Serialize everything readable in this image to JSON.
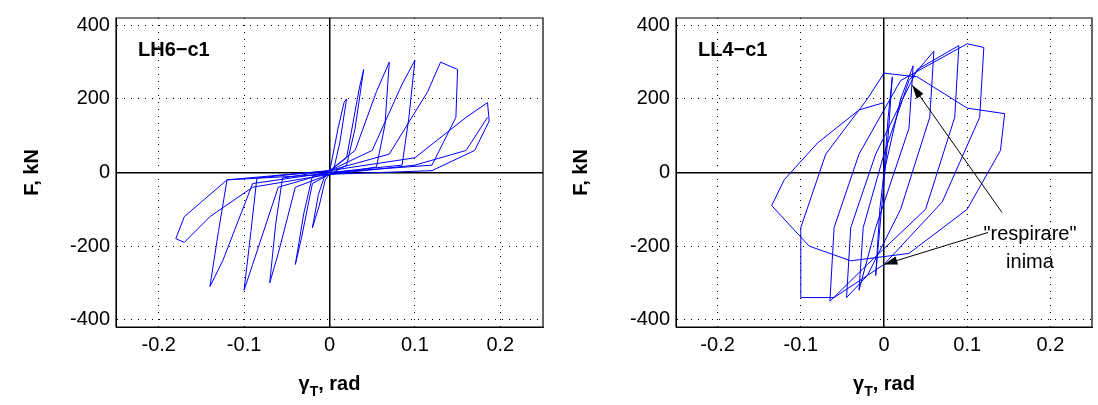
{
  "chart_data": [
    {
      "type": "line",
      "title": "LH6−c1",
      "xlabel": "γ$_{T}$, rad",
      "ylabel": "F, kN",
      "xlim": [
        -0.25,
        0.25
      ],
      "ylim": [
        -420,
        420
      ],
      "xticks": [
        -0.2,
        -0.1,
        0,
        0.1,
        0.2
      ],
      "yticks": [
        -400,
        -200,
        0,
        200,
        400
      ],
      "grid": true,
      "legend": false,
      "marker": "none",
      "line_style": "solid",
      "series": [
        {
          "color": "#0000ff",
          "x": [
            0,
            0.01,
            0.017,
            0.02,
            0.012,
            0.005,
            -0.005,
            -0.012,
            -0.02,
            -0.013,
            -0.005,
            0.02,
            0.035,
            0.04,
            0.03,
            0.02,
            0,
            -0.02,
            -0.033,
            -0.04,
            -0.03,
            -0.02,
            0,
            0.03,
            0.055,
            0.07,
            0.065,
            0.055,
            0,
            -0.04,
            -0.06,
            -0.07,
            -0.063,
            -0.055,
            0,
            0.05,
            0.085,
            0.1,
            0.093,
            0.085,
            0,
            -0.06,
            -0.09,
            -0.1,
            -0.092,
            -0.085,
            0,
            0.07,
            0.115,
            0.13,
            0.15,
            0.148,
            0.12,
            0,
            -0.09,
            -0.125,
            -0.14,
            -0.13,
            -0.12,
            0,
            0.1,
            0.16,
            0.185,
            0.187,
            0.17,
            0.12,
            0,
            -0.12,
            -0.17,
            -0.18,
            -0.17,
            -0.14,
            -0.09,
            0,
            0.1,
            0.16,
            0.185
          ],
          "values": [
            0,
            120,
            190,
            200,
            80,
            10,
            -20,
            -90,
            -150,
            -60,
            -5,
            40,
            230,
            280,
            120,
            20,
            -5,
            -30,
            -180,
            -250,
            -110,
            -10,
            5,
            60,
            220,
            300,
            130,
            15,
            -5,
            -40,
            -220,
            -300,
            -140,
            -15,
            5,
            60,
            240,
            305,
            150,
            20,
            0,
            -40,
            -250,
            -320,
            -160,
            -15,
            5,
            50,
            220,
            300,
            280,
            150,
            20,
            0,
            -30,
            -240,
            -310,
            -160,
            -20,
            5,
            40,
            150,
            190,
            140,
            60,
            5,
            -5,
            -20,
            -120,
            -180,
            -190,
            -120,
            -40,
            -5,
            20,
            60,
            150
          ]
        }
      ]
    },
    {
      "type": "line",
      "title": "LL4−c1",
      "xlabel": "γ$_{T}$, rad",
      "ylabel": "F, kN",
      "xlim": [
        -0.25,
        0.25
      ],
      "ylim": [
        -420,
        420
      ],
      "xticks": [
        -0.2,
        -0.1,
        0,
        0.1,
        0.2
      ],
      "yticks": [
        -400,
        -200,
        0,
        200,
        400
      ],
      "grid": true,
      "legend": false,
      "marker": "none",
      "line_style": "solid",
      "annotations": [
        {
          "text": "\"respirare\"",
          "x": 0.034,
          "y": 237
        },
        {
          "text": "inima",
          "x": 0,
          "y": -250
        }
      ],
      "series": [
        {
          "color": "#0000ff",
          "x": [
            0,
            0.005,
            0.01,
            0.005,
            -0.005,
            -0.01,
            -0.005,
            0,
            0.02,
            0.035,
            0.03,
            -0.01,
            -0.03,
            -0.025,
            0,
            0.03,
            0.06,
            0.055,
            0.02,
            -0.02,
            -0.045,
            -0.04,
            -0.01,
            0.04,
            0.09,
            0.085,
            0.05,
            -0.02,
            -0.065,
            -0.06,
            -0.03,
            0.02,
            0.1,
            0.12,
            0.115,
            0.07,
            0,
            -0.06,
            -0.1,
            -0.1,
            -0.07,
            -0.02,
            0,
            0.04,
            0.1,
            0.145,
            0.14,
            0.1,
            0.03,
            -0.04,
            -0.09,
            -0.135,
            -0.12,
            -0.08,
            -0.03,
            0
          ],
          "values": [
            0,
            150,
            260,
            100,
            -150,
            -280,
            -100,
            0,
            200,
            290,
            120,
            -150,
            -320,
            -150,
            50,
            250,
            330,
            150,
            -100,
            -280,
            -340,
            -150,
            50,
            280,
            345,
            150,
            -100,
            -250,
            -350,
            -150,
            50,
            250,
            350,
            340,
            150,
            -80,
            -250,
            -340,
            -340,
            -150,
            50,
            200,
            270,
            260,
            175,
            160,
            60,
            -100,
            -220,
            -240,
            -200,
            -90,
            -20,
            80,
            170,
            190
          ]
        }
      ]
    }
  ]
}
